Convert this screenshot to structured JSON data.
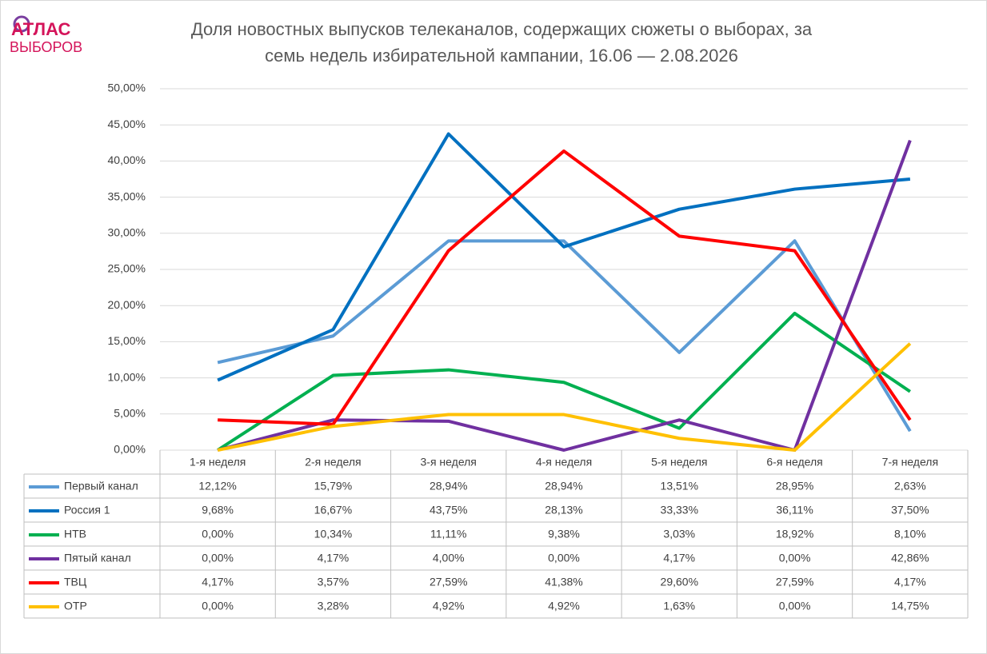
{
  "logo": {
    "line1": "АТЛАС",
    "line2": "ВЫБОРОВ"
  },
  "chart_data": {
    "type": "line",
    "title": [
      "Доля новостных выпусков телеканалов, содержащих сюжеты о выборах, за",
      "семь недель избирательной кампании, 16.06 — 2.08.2026"
    ],
    "categories": [
      "1-я неделя",
      "2-я неделя",
      "3-я неделя",
      "4-я неделя",
      "5-я неделя",
      "6-я неделя",
      "7-я неделя"
    ],
    "series": [
      {
        "name": "Первый канал",
        "color": "#5b9bd5",
        "values": [
          12.12,
          15.79,
          28.94,
          28.94,
          13.51,
          28.95,
          2.63
        ],
        "value_labels": [
          "12,12%",
          "15,79%",
          "28,94%",
          "28,94%",
          "13,51%",
          "28,95%",
          "2,63%"
        ]
      },
      {
        "name": "Россия 1",
        "color": "#0070c0",
        "values": [
          9.68,
          16.67,
          43.75,
          28.13,
          33.33,
          36.11,
          37.5
        ],
        "value_labels": [
          "9,68%",
          "16,67%",
          "43,75%",
          "28,13%",
          "33,33%",
          "36,11%",
          "37,50%"
        ]
      },
      {
        "name": "НТВ",
        "color": "#00b050",
        "values": [
          0,
          10.34,
          11.11,
          9.38,
          3.03,
          18.92,
          8.1
        ],
        "value_labels": [
          "0,00%",
          "10,34%",
          "11,11%",
          "9,38%",
          "3,03%",
          "18,92%",
          "8,10%"
        ]
      },
      {
        "name": "Пятый канал",
        "color": "#7030a0",
        "values": [
          0,
          4.17,
          4,
          0,
          4.17,
          0,
          42.86
        ],
        "value_labels": [
          "0,00%",
          "4,17%",
          "4,00%",
          "0,00%",
          "4,17%",
          "0,00%",
          "42,86%"
        ]
      },
      {
        "name": "ТВЦ",
        "color": "#ff0000",
        "values": [
          4.17,
          3.57,
          27.59,
          41.38,
          29.6,
          27.59,
          4.17
        ],
        "value_labels": [
          "4,17%",
          "3,57%",
          "27,59%",
          "41,38%",
          "29,60%",
          "27,59%",
          "4,17%"
        ]
      },
      {
        "name": "ОТР",
        "color": "#ffc000",
        "values": [
          0,
          3.28,
          4.92,
          4.92,
          1.63,
          0,
          14.75
        ],
        "value_labels": [
          "0,00%",
          "3,28%",
          "4,92%",
          "4,92%",
          "1,63%",
          "0,00%",
          "14,75%"
        ]
      }
    ],
    "ylim": [
      0,
      50
    ],
    "yticks": [
      {
        "value": 0,
        "label": "0,00%"
      },
      {
        "value": 5,
        "label": "5,00%"
      },
      {
        "value": 10,
        "label": "10,00%"
      },
      {
        "value": 15,
        "label": "15,00%"
      },
      {
        "value": 20,
        "label": "20,00%"
      },
      {
        "value": 25,
        "label": "25,00%"
      },
      {
        "value": 30,
        "label": "30,00%"
      },
      {
        "value": 35,
        "label": "35,00%"
      },
      {
        "value": 40,
        "label": "40,00%"
      },
      {
        "value": 45,
        "label": "45,00%"
      },
      {
        "value": 50,
        "label": "50,00%"
      }
    ],
    "grid": true
  }
}
